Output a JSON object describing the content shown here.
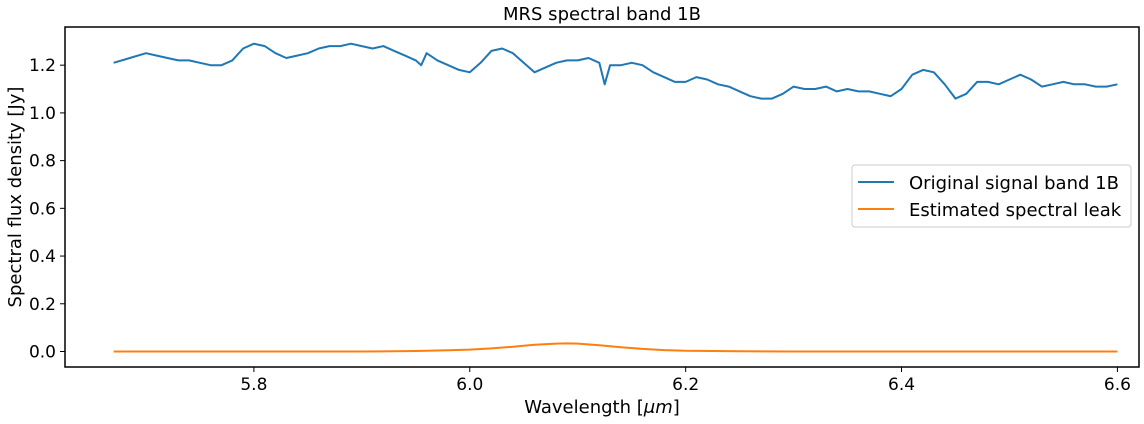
{
  "chart_data": {
    "type": "line",
    "title": "MRS spectral band 1B",
    "xlabel": "Wavelength [",
    "xlabel_unit": "μm",
    "xlabel_suffix": "]",
    "ylabel": "Spectral flux density [Jy]",
    "xlim": [
      5.625,
      6.62
    ],
    "ylim": [
      -0.065,
      1.36
    ],
    "xticks": [
      5.8,
      6.0,
      6.2,
      6.4,
      6.6
    ],
    "xtick_labels": [
      "5.8",
      "6.0",
      "6.2",
      "6.4",
      "6.6"
    ],
    "yticks": [
      0.0,
      0.2,
      0.4,
      0.6,
      0.8,
      1.0,
      1.2
    ],
    "ytick_labels": [
      "0.0",
      "0.2",
      "0.4",
      "0.6",
      "0.8",
      "1.0",
      "1.2"
    ],
    "grid": false,
    "legend_position": "center-right",
    "series": [
      {
        "name": "Original signal band 1B",
        "color": "#1f77b4",
        "x": [
          5.67,
          5.685,
          5.7,
          5.71,
          5.72,
          5.73,
          5.74,
          5.75,
          5.76,
          5.77,
          5.78,
          5.79,
          5.8,
          5.81,
          5.82,
          5.83,
          5.84,
          5.85,
          5.86,
          5.87,
          5.88,
          5.89,
          5.9,
          5.91,
          5.92,
          5.93,
          5.94,
          5.95,
          5.955,
          5.96,
          5.97,
          5.98,
          5.99,
          6.0,
          6.01,
          6.02,
          6.03,
          6.04,
          6.05,
          6.06,
          6.07,
          6.08,
          6.09,
          6.1,
          6.11,
          6.12,
          6.125,
          6.13,
          6.14,
          6.15,
          6.16,
          6.17,
          6.18,
          6.19,
          6.2,
          6.21,
          6.22,
          6.23,
          6.24,
          6.25,
          6.26,
          6.27,
          6.28,
          6.29,
          6.3,
          6.31,
          6.32,
          6.33,
          6.34,
          6.35,
          6.36,
          6.37,
          6.38,
          6.39,
          6.4,
          6.41,
          6.42,
          6.43,
          6.44,
          6.45,
          6.46,
          6.47,
          6.48,
          6.49,
          6.5,
          6.51,
          6.52,
          6.53,
          6.54,
          6.55,
          6.56,
          6.57,
          6.58,
          6.59,
          6.6
        ],
        "y": [
          1.21,
          1.23,
          1.25,
          1.24,
          1.23,
          1.22,
          1.22,
          1.21,
          1.2,
          1.2,
          1.22,
          1.27,
          1.29,
          1.28,
          1.25,
          1.23,
          1.24,
          1.25,
          1.27,
          1.28,
          1.28,
          1.29,
          1.28,
          1.27,
          1.28,
          1.26,
          1.24,
          1.22,
          1.2,
          1.25,
          1.22,
          1.2,
          1.18,
          1.17,
          1.21,
          1.26,
          1.27,
          1.25,
          1.21,
          1.17,
          1.19,
          1.21,
          1.22,
          1.22,
          1.23,
          1.21,
          1.12,
          1.2,
          1.2,
          1.21,
          1.2,
          1.17,
          1.15,
          1.13,
          1.13,
          1.15,
          1.14,
          1.12,
          1.11,
          1.09,
          1.07,
          1.06,
          1.06,
          1.08,
          1.11,
          1.1,
          1.1,
          1.11,
          1.09,
          1.1,
          1.09,
          1.09,
          1.08,
          1.07,
          1.1,
          1.16,
          1.18,
          1.17,
          1.12,
          1.06,
          1.08,
          1.13,
          1.13,
          1.12,
          1.14,
          1.16,
          1.14,
          1.11,
          1.12,
          1.13,
          1.12,
          1.12,
          1.11,
          1.11,
          1.12
        ]
      },
      {
        "name": "Estimated spectral leak",
        "color": "#ff7f0e",
        "x": [
          5.67,
          5.8,
          5.9,
          5.95,
          5.98,
          6.0,
          6.02,
          6.04,
          6.06,
          6.08,
          6.09,
          6.1,
          6.12,
          6.14,
          6.16,
          6.18,
          6.2,
          6.25,
          6.3,
          6.4,
          6.5,
          6.6
        ],
        "y": [
          0.0,
          0.0,
          0.0,
          0.002,
          0.005,
          0.008,
          0.013,
          0.02,
          0.028,
          0.033,
          0.034,
          0.033,
          0.026,
          0.018,
          0.011,
          0.006,
          0.003,
          0.001,
          0.0,
          0.0,
          0.0,
          0.0
        ]
      }
    ]
  }
}
